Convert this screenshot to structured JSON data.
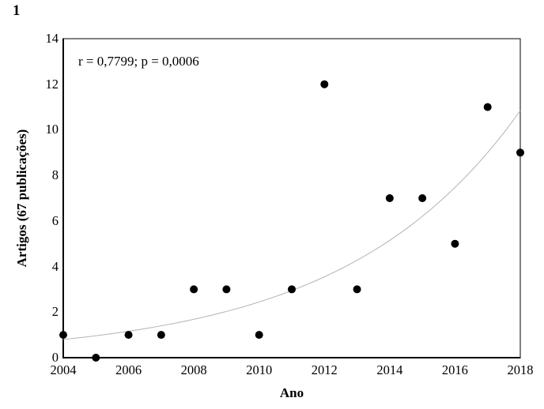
{
  "chart_data": {
    "type": "scatter",
    "figure_label": "1",
    "annotation": "r = 0,7799; p = 0,0006",
    "xlabel": "Ano",
    "ylabel": "Artigos (67 publicações)",
    "x": [
      2004,
      2005,
      2006,
      2007,
      2008,
      2009,
      2010,
      2011,
      2012,
      2013,
      2014,
      2015,
      2016,
      2017,
      2018
    ],
    "y": [
      1,
      0,
      1,
      1,
      3,
      3,
      1,
      3,
      12,
      3,
      7,
      7,
      5,
      11,
      9
    ],
    "xlim": [
      2004,
      2018
    ],
    "ylim": [
      0,
      14
    ],
    "x_ticks": [
      "2004",
      "2006",
      "2008",
      "2010",
      "2012",
      "2014",
      "2016",
      "2018"
    ],
    "y_ticks": [
      "0",
      "2",
      "4",
      "6",
      "8",
      "10",
      "12",
      "14"
    ],
    "grid": false,
    "legend": null,
    "point_color": "#000000",
    "axis_color": "#000000",
    "trendline": {
      "type": "exponential",
      "a": 0.8,
      "b": 0.1862,
      "color": "#b3b3b3"
    }
  }
}
